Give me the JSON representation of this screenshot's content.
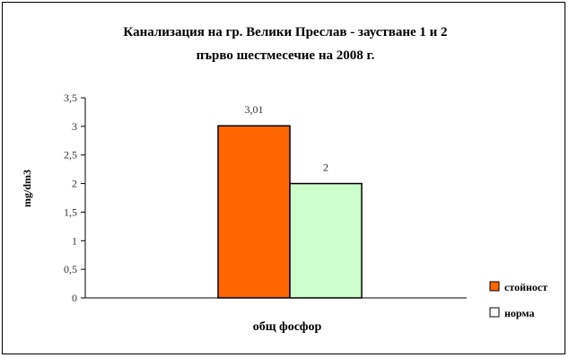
{
  "chart_data": {
    "type": "bar",
    "title": "Канализация на гр. Велики Преслав - заустване 1 и 2",
    "subtitle": "първо шестмесечие на 2008 г.",
    "categories": [
      "общ фосфор"
    ],
    "series": [
      {
        "name": "стойност",
        "values": [
          3.01
        ],
        "color": "#ff6600"
      },
      {
        "name": "норма",
        "values": [
          2
        ],
        "color": "#ccffcc"
      }
    ],
    "data_labels": [
      "3,01",
      "2"
    ],
    "xlabel": "",
    "ylabel": "mg/dm3",
    "ylim": [
      0,
      3.5
    ],
    "yticks": [
      "0",
      "0,5",
      "1",
      "1,5",
      "2",
      "2,5",
      "3",
      "3,5"
    ],
    "grid": false,
    "legend": "right"
  }
}
